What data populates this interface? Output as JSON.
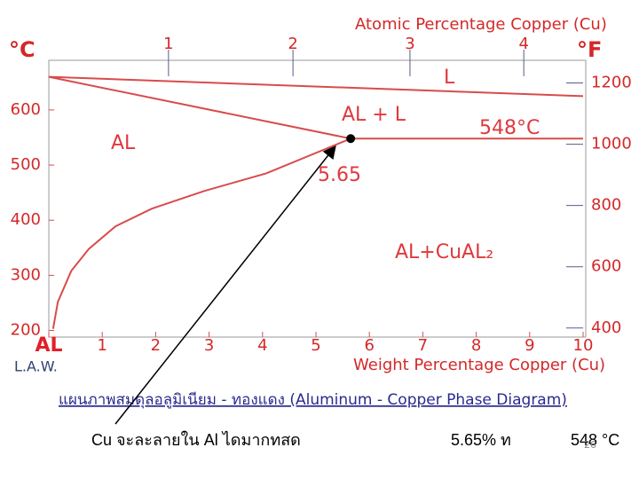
{
  "chart_data": {
    "type": "line",
    "top_axis_label": "Atomic Percentage Copper (Cu)",
    "xlabel": "Weight Percentage Copper (Cu)",
    "ylabel": "°C",
    "y2label": "°F",
    "xlim": [
      0,
      10
    ],
    "ylim": [
      188,
      690
    ],
    "y2lim": [
      370.4,
      1274
    ],
    "xticks": [
      {
        "value": 0,
        "label": "AL"
      },
      1,
      2,
      3,
      4,
      5,
      6,
      7,
      8,
      9,
      10
    ],
    "x2ticks": [
      {
        "value": 2.24,
        "label": "1"
      },
      {
        "value": 4.57,
        "label": "2"
      },
      {
        "value": 6.76,
        "label": "3"
      },
      {
        "value": 8.89,
        "label": "4"
      }
    ],
    "yticks": [
      200,
      300,
      400,
      500,
      600
    ],
    "y2ticks": [
      400,
      600,
      800,
      1000,
      1200
    ],
    "grid": false,
    "series": [
      {
        "color": "#d94b4b",
        "x": [
          0,
          10
        ],
        "values": [
          660,
          625
        ]
      },
      {
        "color": "#d94b4b",
        "x": [
          0,
          5.65
        ],
        "values": [
          660,
          548
        ]
      },
      {
        "color": "#d94b4b",
        "x": [
          5.65,
          10
        ],
        "values": [
          548,
          548
        ]
      },
      {
        "color": "#d94b4b",
        "x": [
          0.08,
          0.17,
          0.42,
          0.75,
          1.25,
          1.93,
          2.91,
          4.07,
          5.65
        ],
        "values": [
          203,
          252,
          308,
          348,
          389,
          421,
          453,
          485,
          548
        ]
      }
    ],
    "annotations": [
      {
        "text": "L"
      },
      {
        "text": "AL + L"
      },
      {
        "text": "548°C"
      },
      {
        "text": "AL"
      },
      {
        "text": "5.65"
      },
      {
        "text": "AL+CuAL₂"
      }
    ]
  },
  "credit": "L.A.W.",
  "caption": "แผนภาพสมดุลอลูมิเนียม - ทองแดง  (Aluminum - Copper Phase Diagram)",
  "footer": [
    "Cu จะละลายใน Al ไดมากทสด",
    "5.65% ท",
    "548 °C"
  ],
  "page_number": "26"
}
